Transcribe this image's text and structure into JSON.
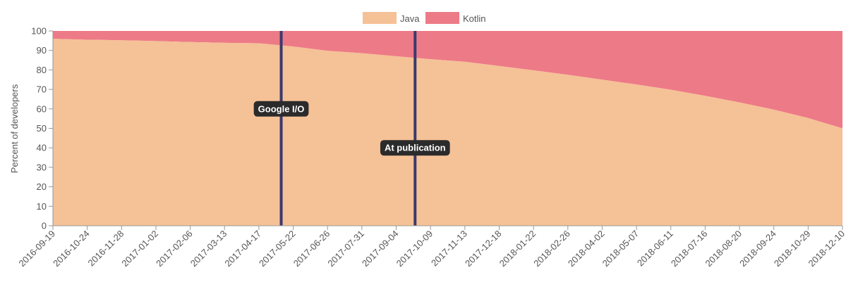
{
  "chart_data": {
    "type": "area",
    "stacked": true,
    "ylabel": "Percent of developers",
    "ylim": [
      0,
      100
    ],
    "yticks": [
      0,
      10,
      20,
      30,
      40,
      50,
      60,
      70,
      80,
      90,
      100
    ],
    "x": [
      "2016-09-19",
      "2016-10-24",
      "2016-11-28",
      "2017-01-02",
      "2017-02-06",
      "2017-03-13",
      "2017-04-17",
      "2017-05-22",
      "2017-06-26",
      "2017-07-31",
      "2017-09-04",
      "2017-10-09",
      "2017-11-13",
      "2017-12-18",
      "2018-01-22",
      "2018-02-26",
      "2018-04-02",
      "2018-05-07",
      "2018-06-11",
      "2018-07-16",
      "2018-08-20",
      "2018-09-24",
      "2018-10-29",
      "2018-12-10"
    ],
    "series": [
      {
        "name": "Java",
        "color": "#f5c196",
        "values": [
          96,
          95.5,
          95.2,
          94.8,
          94.3,
          93.9,
          93.7,
          92.0,
          89.8,
          88.6,
          87.0,
          85.5,
          84.2,
          82.0,
          79.8,
          77.5,
          75.0,
          72.5,
          69.8,
          66.7,
          63.3,
          59.6,
          55.3,
          50.0
        ]
      },
      {
        "name": "Kotlin",
        "color": "#ed7a87",
        "values": [
          4,
          4.5,
          4.8,
          5.2,
          5.7,
          6.1,
          6.3,
          8.0,
          10.2,
          11.4,
          13.0,
          14.5,
          15.8,
          18.0,
          20.2,
          22.5,
          25.0,
          27.5,
          30.2,
          33.3,
          36.7,
          40.4,
          44.7,
          50.0
        ]
      }
    ],
    "annotations": [
      {
        "label": "Google I/O",
        "x_index": 6.65,
        "label_y": 60,
        "color": "#3b3a6e"
      },
      {
        "label": "At publication",
        "x_index": 10.55,
        "label_y": 40,
        "color": "#3b3a6e"
      }
    ],
    "legend": {
      "placement": "top-center",
      "items": [
        "Java",
        "Kotlin"
      ]
    },
    "grid": false
  }
}
